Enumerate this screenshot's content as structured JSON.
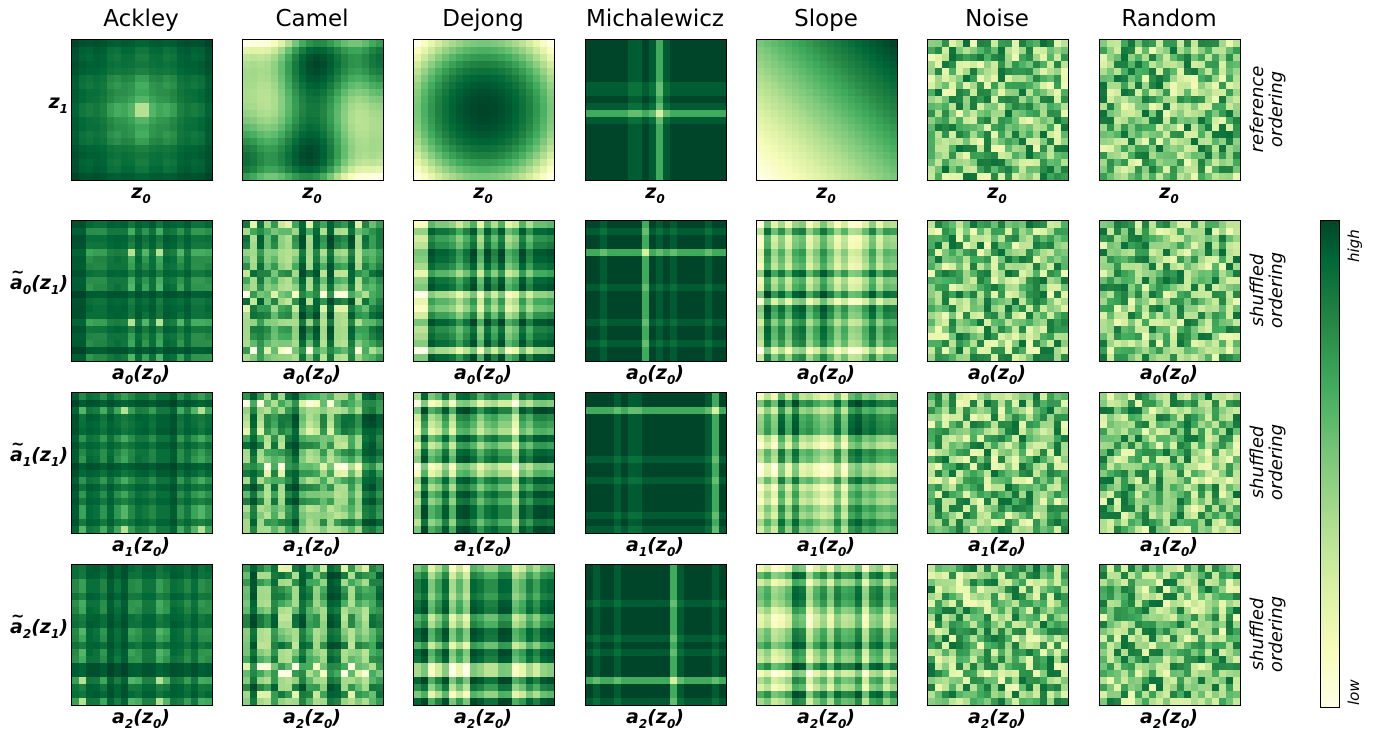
{
  "chart_data": {
    "type": "heatmap",
    "colormap": "YlGn",
    "columns": [
      "Ackley",
      "Camel",
      "Dejong",
      "Michalewicz",
      "Slope",
      "Noise",
      "Random"
    ],
    "rows": [
      {
        "ylabel_sym": "z",
        "ylabel_sub": "1",
        "ylabel_tilde": false,
        "xlabel_sym": "z",
        "xlabel_sub": "0",
        "xlabel_wrap": false,
        "ordering_label": [
          "reference",
          "ordering"
        ]
      },
      {
        "ylabel_sym": "a",
        "ylabel_sub": "0",
        "ylabel_arg": "(z",
        "ylabel_argsub": "1",
        "ylabel_tail": ")",
        "ylabel_tilde": true,
        "xlabel_sym": "a",
        "xlabel_sub": "0",
        "xlabel_arg": "(z",
        "xlabel_argsub": "0",
        "xlabel_tail": ")",
        "ordering_label": [
          "shuffled",
          "ordering"
        ]
      },
      {
        "ylabel_sym": "a",
        "ylabel_sub": "1",
        "ylabel_arg": "(z",
        "ylabel_argsub": "1",
        "ylabel_tail": ")",
        "ylabel_tilde": true,
        "xlabel_sym": "a",
        "xlabel_sub": "1",
        "xlabel_arg": "(z",
        "xlabel_argsub": "0",
        "xlabel_tail": ")",
        "ordering_label": [
          "shuffled",
          "ordering"
        ]
      },
      {
        "ylabel_sym": "a",
        "ylabel_sub": "2",
        "ylabel_arg": "(z",
        "ylabel_argsub": "1",
        "ylabel_tail": ")",
        "ylabel_tilde": true,
        "xlabel_sym": "a",
        "xlabel_sub": "2",
        "xlabel_arg": "(z",
        "xlabel_argsub": "0",
        "xlabel_tail": ")",
        "ordering_label": [
          "shuffled",
          "ordering"
        ]
      }
    ],
    "grid_cells": 20,
    "colorbar": {
      "high_label": "high",
      "low_label": "low"
    },
    "colors": {
      "low": "#ffffe5",
      "high": "#004529"
    }
  }
}
